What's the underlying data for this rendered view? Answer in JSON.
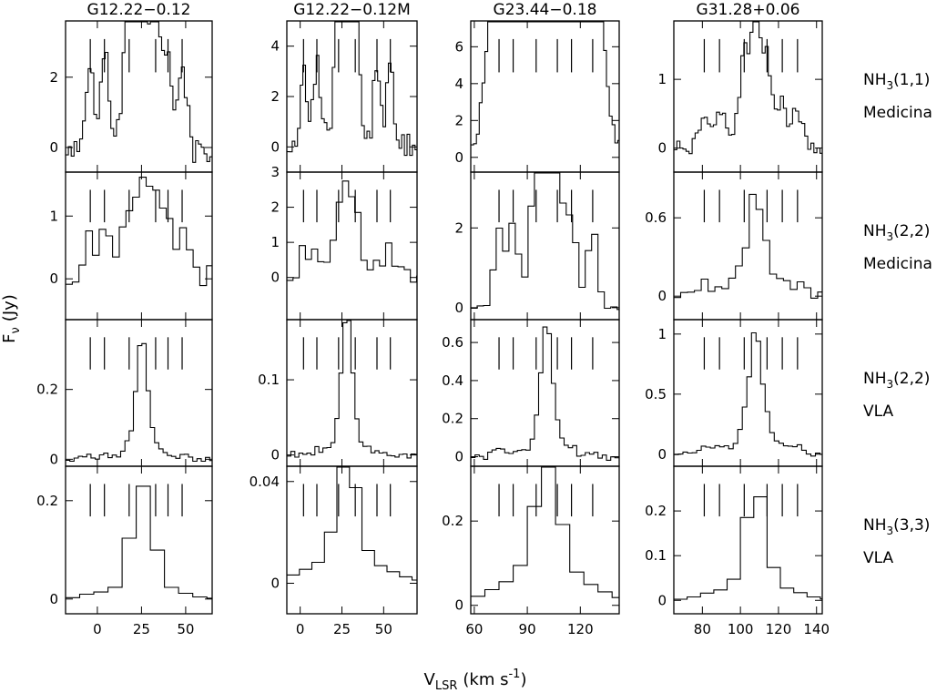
{
  "chart_data": {
    "type": "line",
    "style": "step",
    "xlabel": "V",
    "xlabel_sub": "LSR",
    "xlabel_units": "(km s",
    "xlabel_exp": "-1",
    "xlabel_close": ")",
    "ylabel": "F",
    "ylabel_sub": "ν",
    "ylabel_units": "(Jy)",
    "columns": [
      {
        "title": "G12.22−0.12",
        "xlim": [
          -18,
          65
        ],
        "xticks": [
          0,
          25,
          50
        ],
        "xtick_labels": [
          "0",
          "25",
          "50"
        ],
        "v0": 25.3,
        "hf": [
          -4,
          4,
          18,
          33,
          40,
          48
        ]
      },
      {
        "title": "G12.22−0.12M",
        "xlim": [
          -8,
          70
        ],
        "xticks": [
          0,
          25,
          50
        ],
        "xtick_labels": [
          "0",
          "25",
          "50"
        ],
        "v0": 28.0,
        "hf": [
          2,
          10,
          23,
          33,
          46,
          54
        ]
      },
      {
        "title": "G23.44−0.18",
        "xlim": [
          58,
          142
        ],
        "xticks": [
          60,
          90,
          120
        ],
        "xtick_labels": [
          "60",
          "90",
          "120"
        ],
        "v0": 101.0,
        "hf": [
          74,
          82,
          95,
          107,
          115,
          127
        ]
      },
      {
        "title": "G31.28+0.06",
        "xlim": [
          65,
          143
        ],
        "xticks": [
          80,
          100,
          120,
          140
        ],
        "xtick_labels": [
          "80",
          "100",
          "120",
          "140"
        ],
        "v0": 108.0,
        "hf": [
          81,
          89,
          102,
          114,
          122,
          130
        ]
      }
    ],
    "rows": [
      {
        "line": "NH",
        "line_sub": "3",
        "line_trans": "(1,1)",
        "telescope": "Medicina"
      },
      {
        "line": "NH",
        "line_sub": "3",
        "line_trans": "(2,2)",
        "telescope": "Medicina"
      },
      {
        "line": "NH",
        "line_sub": "3",
        "line_trans": "(2,2)",
        "telescope": "VLA"
      },
      {
        "line": "NH",
        "line_sub": "3",
        "line_trans": "(3,3)",
        "telescope": "VLA"
      }
    ],
    "panels": [
      [
        {
          "ylim": [
            -0.7,
            3.6
          ],
          "yticks": [
            0,
            2
          ],
          "ytick_labels": [
            "0",
            "2"
          ],
          "bin": 1.6,
          "peak": 3.2,
          "sat": 0.55,
          "noise": 0.5,
          "width": 2.5,
          "hf_lo": 1.8,
          "hf_hi": 2.9
        },
        {
          "ylim": [
            -0.65,
            1.7
          ],
          "yticks": [
            0,
            1
          ],
          "ytick_labels": [
            "0",
            "1"
          ],
          "bin": 3.8,
          "peak": 1.3,
          "sat": 0.2,
          "noise": 0.22,
          "width": 3.5,
          "hf_lo": 1.05,
          "hf_hi": 1.5
        },
        {
          "ylim": [
            -0.02,
            0.4
          ],
          "yticks": [
            0,
            0.2
          ],
          "ytick_labels": [
            "0",
            "0.2"
          ],
          "bin": 2.4,
          "peak": 0.33,
          "sat": 0.08,
          "noise": 0.008,
          "width": 3.0,
          "hf_lo": 0.05,
          "hf_hi": 0.15
        },
        {
          "ylim": [
            -0.03,
            0.27
          ],
          "yticks": [
            0,
            0.2
          ],
          "ytick_labels": [
            "0",
            "0.2"
          ],
          "bin": 8.0,
          "peak": 0.21,
          "sat": 0.05,
          "noise": 0.0,
          "width": 6.0,
          "hf_lo": 0.06,
          "hf_hi": 0.14
        }
      ],
      [
        {
          "ylim": [
            -1.0,
            5.0
          ],
          "yticks": [
            0,
            2,
            4
          ],
          "ytick_labels": [
            "0",
            "2",
            "4"
          ],
          "bin": 1.6,
          "peak": 4.3,
          "sat": 0.3,
          "noise": 0.55,
          "width": 2.2,
          "hf_lo": 1.8,
          "hf_hi": 3.3
        },
        {
          "ylim": [
            -1.2,
            3.0
          ],
          "yticks": [
            0,
            1,
            2,
            3
          ],
          "ytick_labels": [
            "0",
            "1",
            "2",
            "3"
          ],
          "bin": 3.7,
          "peak": 1.75,
          "sat": 0.16,
          "noise": 0.3,
          "width": 3.2,
          "hf_lo": 0.85,
          "hf_hi": 1.75
        },
        {
          "ylim": [
            -0.015,
            0.18
          ],
          "yticks": [
            0,
            0.1
          ],
          "ytick_labels": [
            "0",
            "0.1"
          ],
          "bin": 2.4,
          "peak": 0.17,
          "sat": 0.12,
          "noise": 0.005,
          "width": 3.0,
          "hf_lo": 0.02,
          "hf_hi": 0.07
        },
        {
          "ylim": [
            -0.012,
            0.046
          ],
          "yticks": [
            0,
            0.04
          ],
          "ytick_labels": [
            "0",
            "0.04"
          ],
          "bin": 7.5,
          "peak": 0.04,
          "sat": 0.25,
          "noise": 0.0,
          "width": 6.0,
          "hf_lo": 0.018,
          "hf_hi": 0.028
        }
      ],
      [
        {
          "ylim": [
            -0.8,
            7.4
          ],
          "yticks": [
            0,
            2,
            4,
            6
          ],
          "ytick_labels": [
            "0",
            "2",
            "4",
            "6"
          ],
          "bin": 1.6,
          "peak": 6.8,
          "sat": 0.7,
          "noise": 0.55,
          "width": 6.0,
          "hf_lo": 3.3,
          "hf_hi": 6.3
        },
        {
          "ylim": [
            -0.3,
            3.4
          ],
          "yticks": [
            0,
            2
          ],
          "ytick_labels": [
            "0",
            "2"
          ],
          "bin": 3.6,
          "peak": 3.1,
          "sat": 0.3,
          "noise": 0.05,
          "width": 3.0,
          "hf_lo": 1.4,
          "hf_hi": 2.3
        },
        {
          "ylim": [
            -0.05,
            0.72
          ],
          "yticks": [
            0,
            0.2,
            0.4,
            0.6
          ],
          "ytick_labels": [
            "0",
            "0.2",
            "0.4",
            "0.6"
          ],
          "bin": 2.4,
          "peak": 0.65,
          "sat": 0.1,
          "noise": 0.02,
          "width": 3.0,
          "hf_lo": 0.09,
          "hf_hi": 0.18
        },
        {
          "ylim": [
            -0.02,
            0.33
          ],
          "yticks": [
            0,
            0.2
          ],
          "ytick_labels": [
            "0",
            "0.2"
          ],
          "bin": 8.0,
          "peak": 0.245,
          "sat": 0.3,
          "noise": 0.0,
          "width": 7.0,
          "hf_lo": 0.04,
          "hf_hi": 0.12
        }
      ],
      [
        {
          "ylim": [
            -0.35,
            1.85
          ],
          "yticks": [
            0,
            1
          ],
          "ytick_labels": [
            "0",
            "1"
          ],
          "bin": 1.6,
          "peak": 1.5,
          "sat": 0.3,
          "noise": 0.12,
          "width": 2.5,
          "hf_lo": 0.85,
          "hf_hi": 1.45
        },
        {
          "ylim": [
            -0.18,
            0.95
          ],
          "yticks": [
            0,
            0.6
          ],
          "ytick_labels": [
            "0",
            "0.6"
          ],
          "bin": 3.6,
          "peak": 0.67,
          "sat": 0.2,
          "noise": 0.06,
          "width": 3.0,
          "hf_lo": 0.23,
          "hf_hi": 0.5
        },
        {
          "ylim": [
            -0.1,
            1.12
          ],
          "yticks": [
            0,
            0.5,
            1
          ],
          "ytick_labels": [
            "0",
            "0.5",
            "1"
          ],
          "bin": 2.4,
          "peak": 0.92,
          "sat": 0.12,
          "noise": 0.02,
          "width": 2.8,
          "hf_lo": 0.14,
          "hf_hi": 0.42
        },
        {
          "ylim": [
            -0.03,
            0.3
          ],
          "yticks": [
            0,
            0.1,
            0.2
          ],
          "ytick_labels": [
            "0",
            "0.1",
            "0.2"
          ],
          "bin": 7.0,
          "peak": 0.215,
          "sat": 0.15,
          "noise": 0.0,
          "width": 5.0,
          "hf_lo": 0.04,
          "hf_hi": 0.11
        }
      ]
    ]
  }
}
